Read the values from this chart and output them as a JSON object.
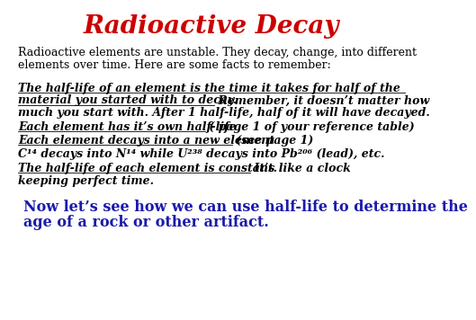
{
  "title": "Radioactive Decay",
  "title_color": "#cc0000",
  "bg_color": "#ffffff",
  "body_color": "#000000",
  "footer_color": "#1a1aaa",
  "title_fontsize": 20,
  "body_fontsize": 9.0,
  "footer_fontsize": 11.5,
  "intro_line1": "Radioactive elements are unstable. They decay, change, into different",
  "intro_line2": "elements over time. Here are some facts to remember:",
  "b1u_line1": "The half-life of an element is the time it takes for half of the",
  "b1u_line2": "material you started with to decay.",
  "b1r_line2": " Remember, it doesn’t matter how",
  "b1_line3": "much you start with. After 1 half-life, half of it will have decayed.",
  "b2u": "Each element has it’s own half-life",
  "b2r": " ( page 1 of your reference table)",
  "b3u": "Each element decays into a new element",
  "b3r": " (see page 1)",
  "b4": "C¹⁴ decays into N¹⁴ while U²³⁸ decays into Pb²⁰⁶ (lead), etc.",
  "b5u": "The half-life of each element is constant.",
  "b5r": " It’s like a clock",
  "b5_line2": "keeping perfect time.",
  "footer_line1": "Now let’s see how we can use half-life to determine the",
  "footer_line2": "age of a rock or other artifact."
}
